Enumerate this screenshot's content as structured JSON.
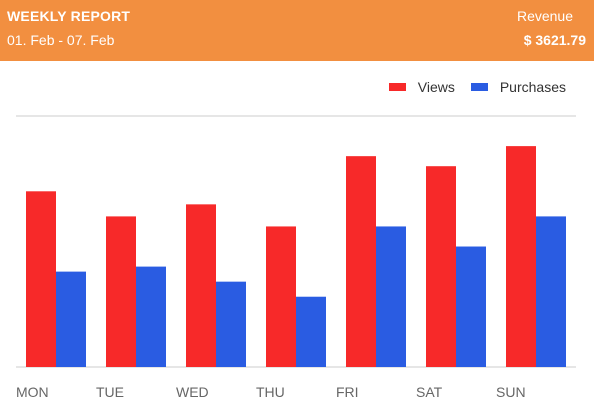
{
  "header": {
    "title": "WEEKLY REPORT",
    "date_range": "01. Feb - 07. Feb",
    "revenue_label": "Revenue",
    "revenue_value": "$ 3621.79"
  },
  "colors": {
    "header_bg": "#f28f40",
    "views": "#f72929",
    "purchases": "#2a5ce2",
    "axis": "#cccccc"
  },
  "chart_data": {
    "type": "bar",
    "title": "",
    "xlabel": "",
    "ylabel": "",
    "categories": [
      "MON",
      "TUE",
      "WED",
      "THU",
      "FRI",
      "SAT",
      "SUN"
    ],
    "series": [
      {
        "name": "Views",
        "color": "#f72929",
        "values": [
          175,
          150,
          162,
          140,
          210,
          200,
          220
        ]
      },
      {
        "name": "Purchases",
        "color": "#2a5ce2",
        "values": [
          95,
          100,
          85,
          70,
          140,
          120,
          150
        ]
      }
    ],
    "ylim": [
      0,
      250
    ],
    "grid": false,
    "legend": "top-right"
  }
}
